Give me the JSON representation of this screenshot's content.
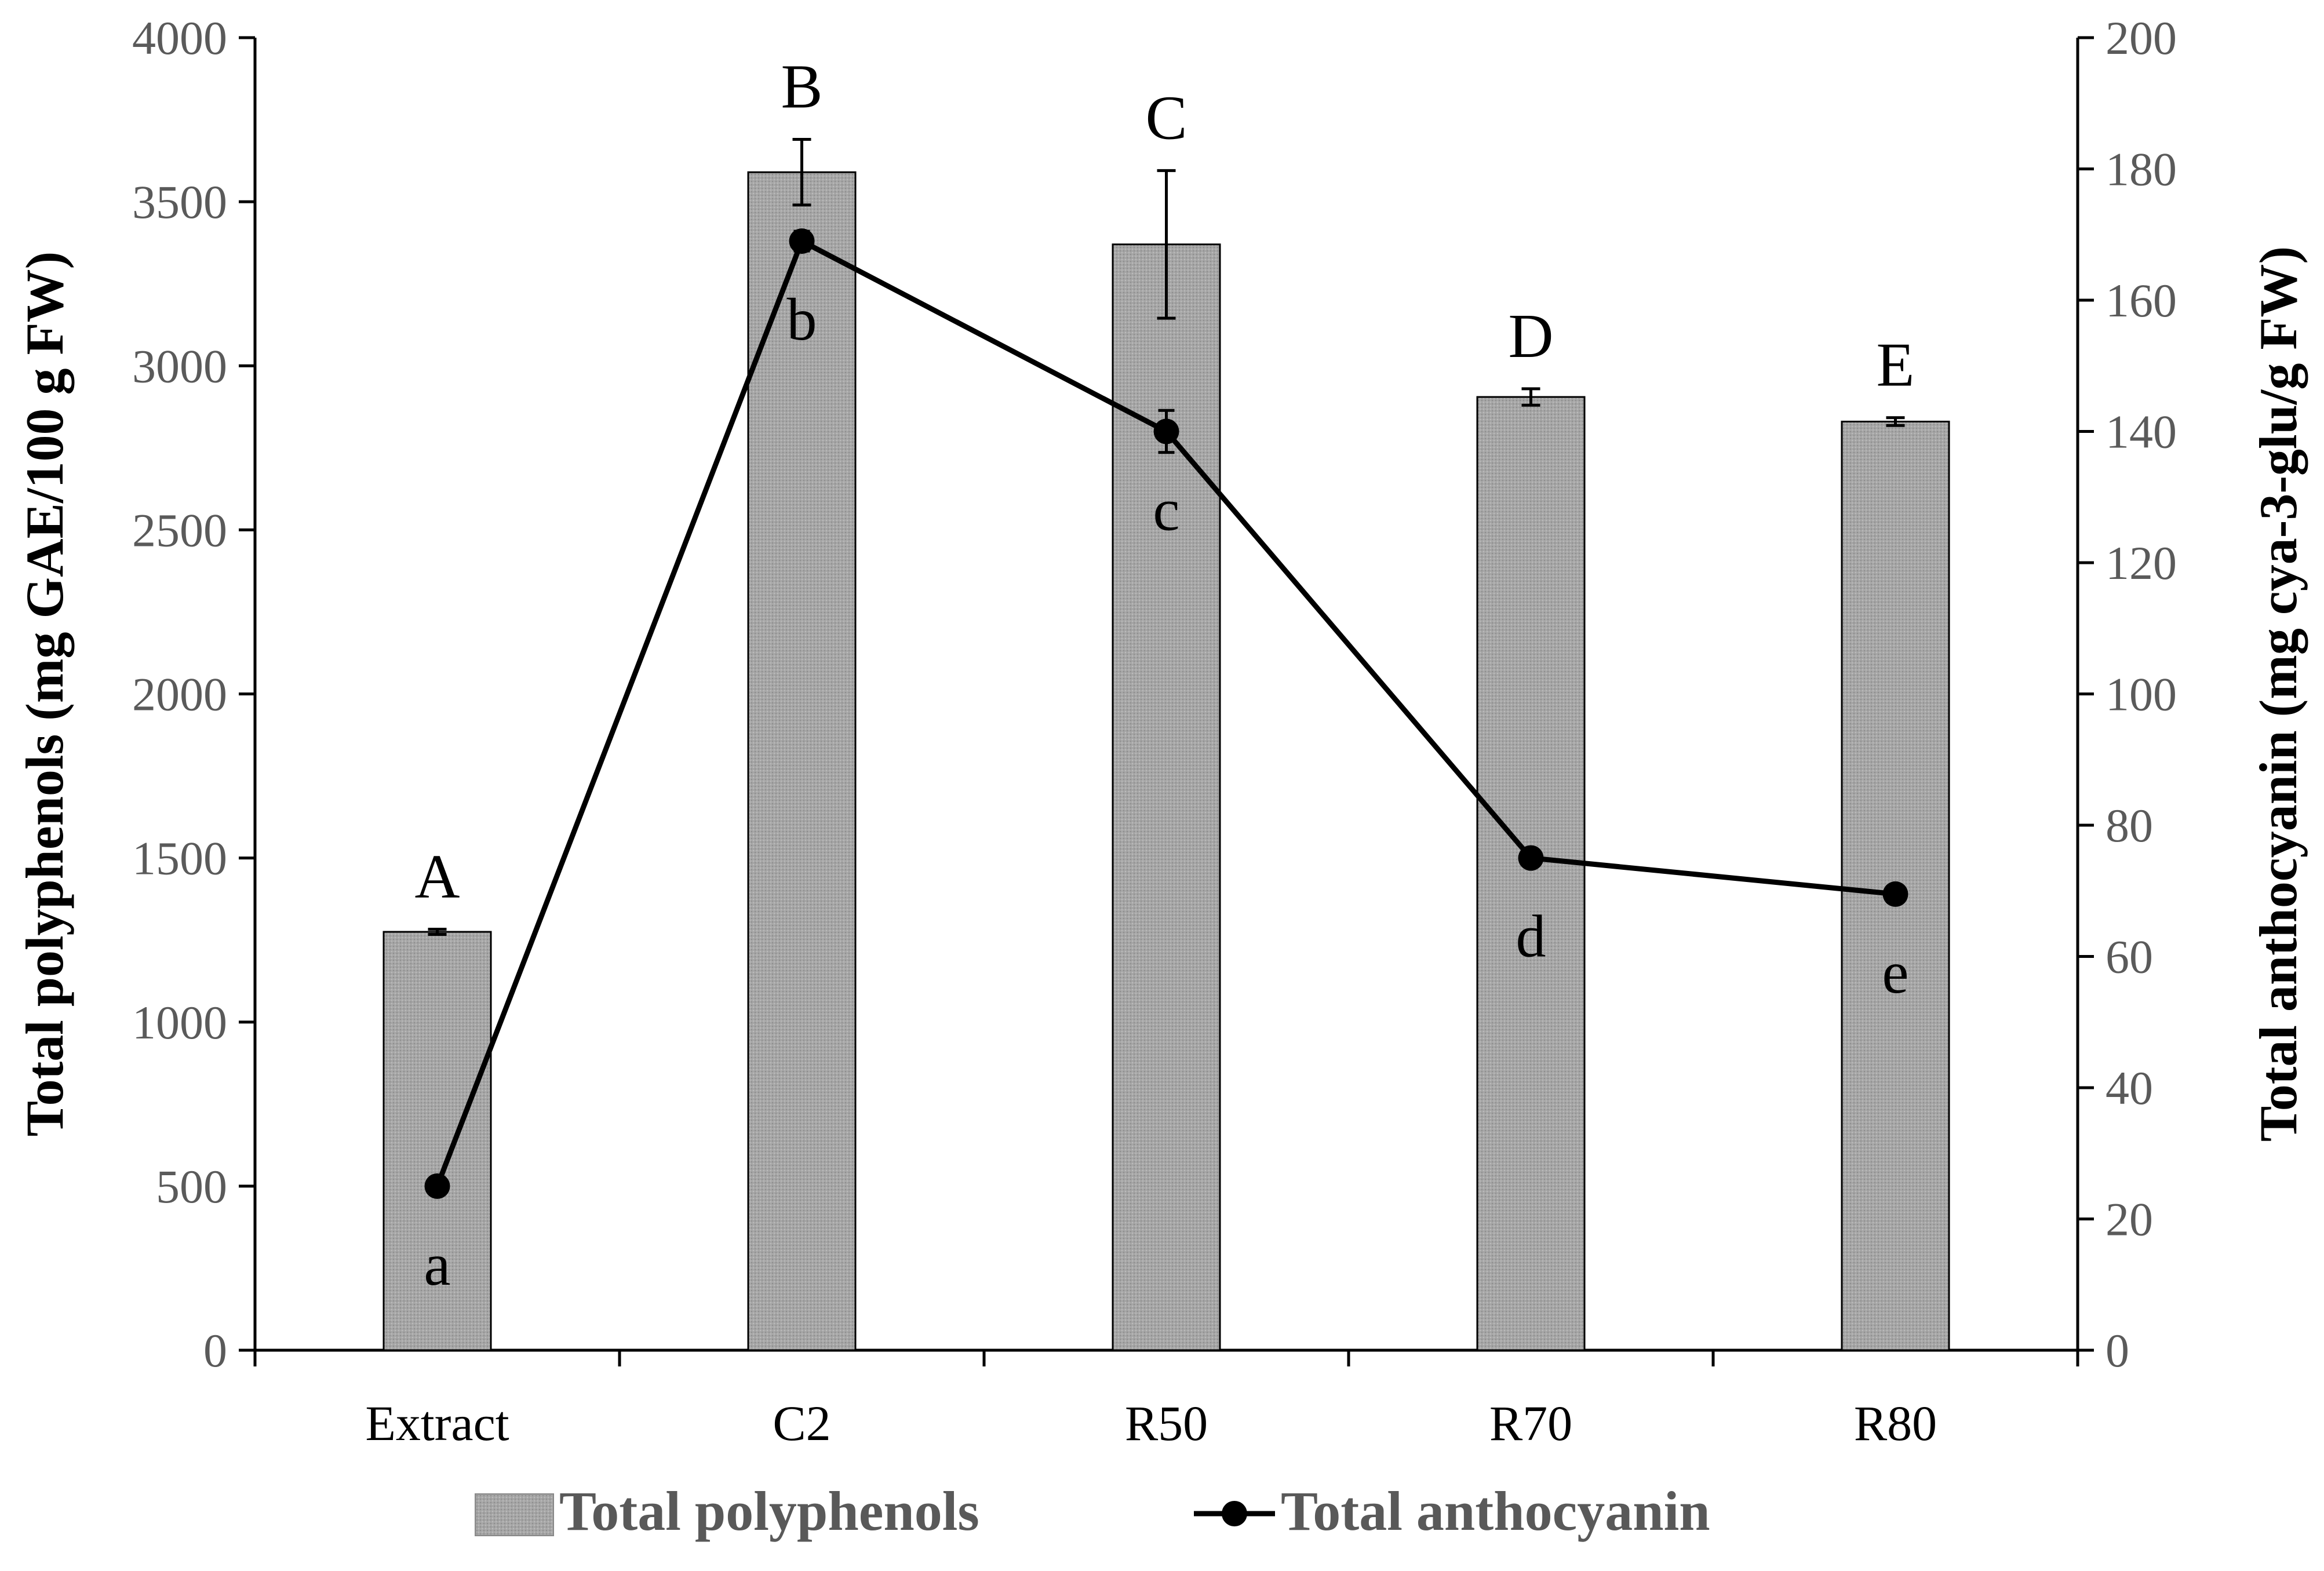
{
  "chart_data": {
    "type": "bar",
    "categories": [
      "Extract",
      "C2",
      "R50",
      "R70",
      "R80"
    ],
    "series": [
      {
        "name": "Total polyphenols",
        "type": "bar",
        "axis": "left",
        "values": [
          1275,
          3590,
          3370,
          2905,
          2830
        ],
        "errors": [
          8,
          100,
          225,
          25,
          12
        ],
        "color": "#a6a6a6"
      },
      {
        "name": "Total anthocyanin",
        "type": "line",
        "axis": "right",
        "values": [
          25,
          169,
          140,
          75,
          69.5
        ],
        "errors": [
          1,
          1.5,
          3.2,
          0.6,
          0.5
        ],
        "color": "#000000"
      }
    ],
    "bar_letters": [
      "A",
      "B",
      "C",
      "D",
      "E"
    ],
    "line_letters": [
      "a",
      "b",
      "c",
      "d",
      "e"
    ],
    "ylabel": "Total polyphenols (mg GAE/100 g FW)",
    "y2label": "Total anthocyanin (mg cya-3-glu/g FW)",
    "ylim": [
      0,
      4000
    ],
    "y2lim": [
      0,
      200
    ],
    "yticks": [
      0,
      500,
      1000,
      1500,
      2000,
      2500,
      3000,
      3500,
      4000
    ],
    "y2ticks": [
      0,
      20,
      40,
      60,
      80,
      100,
      120,
      140,
      160,
      180,
      200
    ],
    "grid": false,
    "legend_position": "bottom"
  }
}
